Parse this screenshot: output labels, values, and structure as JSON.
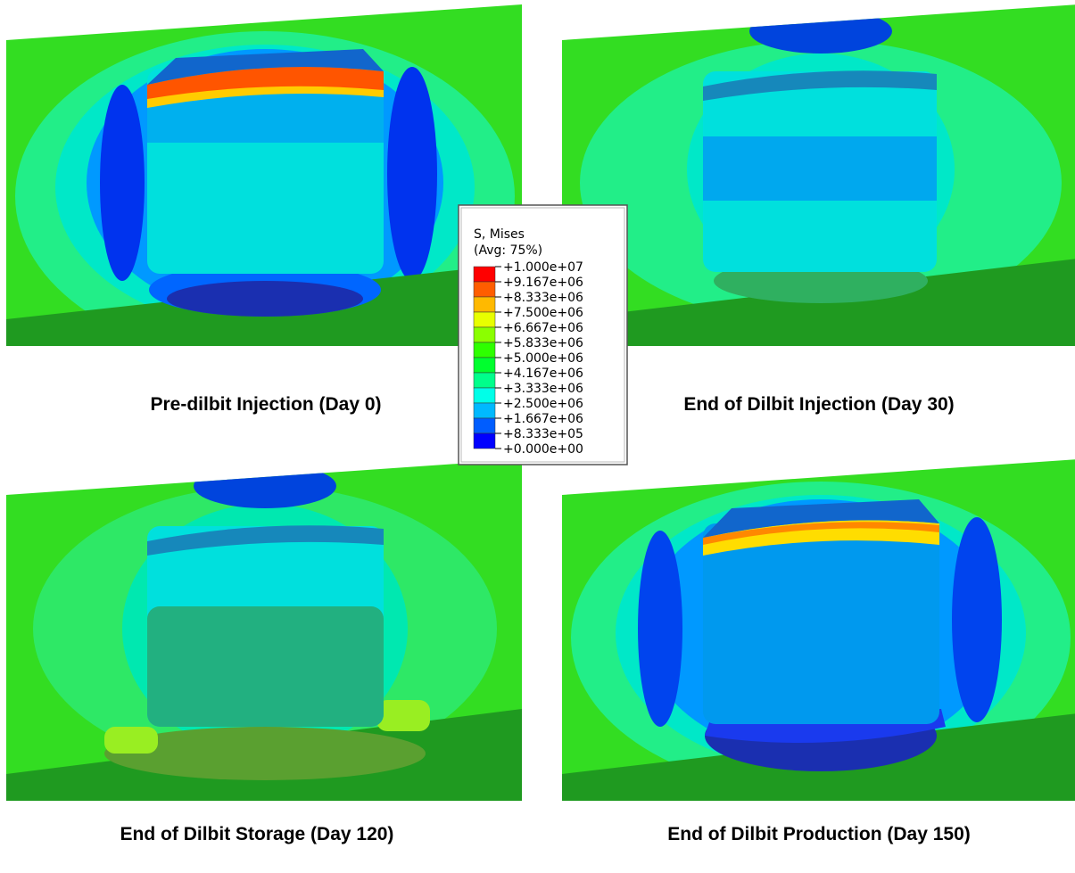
{
  "panels": [
    {
      "caption": "Pre-dilbit Injection (Day 0)"
    },
    {
      "caption": "End of Dilbit Injection (Day 30)"
    },
    {
      "caption": "End of Dilbit Storage (Day 120)"
    },
    {
      "caption": "End of Dilbit Production (Day 150)"
    }
  ],
  "legend": {
    "title": "S, Mises",
    "subtitle": "(Avg: 75%)",
    "labels": [
      "+1.000e+07",
      "+9.167e+06",
      "+8.333e+06",
      "+7.500e+06",
      "+6.667e+06",
      "+5.833e+06",
      "+5.000e+06",
      "+4.167e+06",
      "+3.333e+06",
      "+2.500e+06",
      "+1.667e+06",
      "+8.333e+05",
      "+0.000e+00"
    ]
  }
}
